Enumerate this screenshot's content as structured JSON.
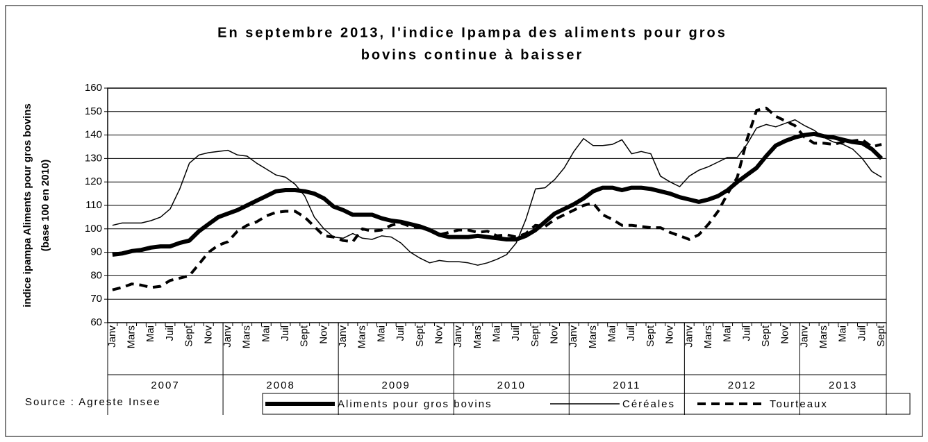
{
  "chart_data": {
    "type": "line",
    "title": [
      "En septembre 2013, l'indice Ipampa des aliments pour gros",
      "bovins continue à baisser"
    ],
    "y_label": [
      "indice ipampa Aliments pour gros bovins",
      "(base 100 en 2010)"
    ],
    "source": "Source : Agreste Insee",
    "categories": [
      "Janv",
      null,
      "Mars",
      null,
      "Mai",
      null,
      "Juil",
      null,
      "Sept",
      null,
      "Nov",
      null,
      "Janv",
      null,
      "Mars",
      null,
      "Mai",
      null,
      "Juil",
      null,
      "Sept",
      null,
      "Nov",
      null,
      "Janv",
      null,
      "Mars",
      null,
      "Mai",
      null,
      "Juil",
      null,
      "Sept",
      null,
      "Nov",
      null,
      "Janv",
      null,
      "Mars",
      null,
      "Mai",
      null,
      "Juil",
      null,
      "Sept",
      null,
      "Nov",
      null,
      "Janv",
      null,
      "Mars",
      null,
      "Mai",
      null,
      "Juil",
      null,
      "Sept",
      null,
      "Nov",
      null,
      "Janv",
      null,
      "Mars",
      null,
      "Mai",
      null,
      "Juil",
      null,
      "Sept",
      null,
      "Nov",
      null,
      "Janv",
      null,
      "Mars",
      null,
      "Mai",
      null,
      "Juil",
      null,
      "Sept"
    ],
    "years": [
      "2007",
      "2008",
      "2009",
      "2010",
      "2011",
      "2012",
      "2013"
    ],
    "series": [
      {
        "name": "Aliments pour gros bovins",
        "color": "#000000",
        "values": [
          89,
          89.5,
          90.5,
          91,
          92,
          92.5,
          92.5,
          94,
          95,
          99,
          102,
          105,
          106.5,
          108,
          110,
          112,
          114,
          116,
          116.5,
          116.5,
          116,
          115,
          113,
          109.5,
          108,
          106,
          106,
          106,
          104.5,
          103.5,
          103,
          102,
          101,
          99.5,
          97.5,
          96.5,
          96.5,
          96.5,
          97,
          96.5,
          96,
          95.5,
          95.5,
          97,
          99.5,
          103,
          106.5,
          108.5,
          110.5,
          113,
          116,
          117.5,
          117.5,
          116.5,
          117.5,
          117.5,
          117,
          116,
          115,
          113.5,
          112.5,
          111.5,
          112.5,
          114,
          116.5,
          120,
          123,
          126,
          131,
          135.5,
          137.5,
          139,
          140,
          140.5,
          139.5,
          139,
          138,
          137,
          136.5,
          134,
          130
        ]
      },
      {
        "name": "Céréales",
        "color": "#000000",
        "values": [
          101.5,
          102.5,
          102.5,
          102.5,
          103.5,
          105,
          108.5,
          117,
          128,
          131.5,
          132.5,
          133,
          133.5,
          131.5,
          131,
          128,
          125.5,
          123,
          122,
          119,
          114,
          105,
          100,
          96.5,
          96,
          98,
          96,
          95.5,
          97,
          96.5,
          94,
          90,
          87.5,
          85.5,
          86.5,
          86,
          86,
          85.5,
          84.5,
          85.5,
          87,
          89,
          94,
          104,
          117,
          117.5,
          121,
          126,
          133,
          138.5,
          135.5,
          135.5,
          136,
          138,
          132,
          133,
          132,
          122.5,
          120,
          118,
          122.5,
          125,
          126.5,
          128.5,
          130.5,
          130.5,
          136,
          143,
          144.5,
          143.5,
          145,
          146.5,
          144,
          142,
          139,
          137,
          136,
          134,
          130,
          124.5,
          122
        ]
      },
      {
        "name": "Tourteaux",
        "color": "#000000",
        "values": [
          74,
          75,
          76.5,
          76,
          75,
          75.5,
          78,
          79,
          80,
          85,
          90,
          93,
          94.5,
          99,
          101.5,
          103,
          105.5,
          107,
          107.5,
          107.5,
          105,
          101,
          97,
          96.5,
          95,
          94.5,
          100,
          99,
          99.5,
          101.5,
          102.5,
          101,
          100.5,
          99.5,
          97.5,
          98.5,
          99.5,
          99.5,
          98.5,
          99,
          97,
          97.5,
          96.5,
          98,
          101.5,
          101,
          104,
          106,
          108,
          110,
          111,
          106,
          104,
          101.5,
          101.5,
          101,
          100.5,
          100.5,
          98.5,
          97,
          95.5,
          97.5,
          102,
          107.5,
          115,
          122,
          138,
          150.5,
          151.5,
          148,
          146,
          144,
          139,
          136.5,
          136.5,
          136,
          137,
          137.5,
          138,
          135,
          136
        ]
      }
    ],
    "ylim": [
      60,
      160
    ],
    "yticks": [
      60,
      70,
      80,
      90,
      100,
      110,
      120,
      130,
      140,
      150,
      160
    ],
    "grid": true
  }
}
